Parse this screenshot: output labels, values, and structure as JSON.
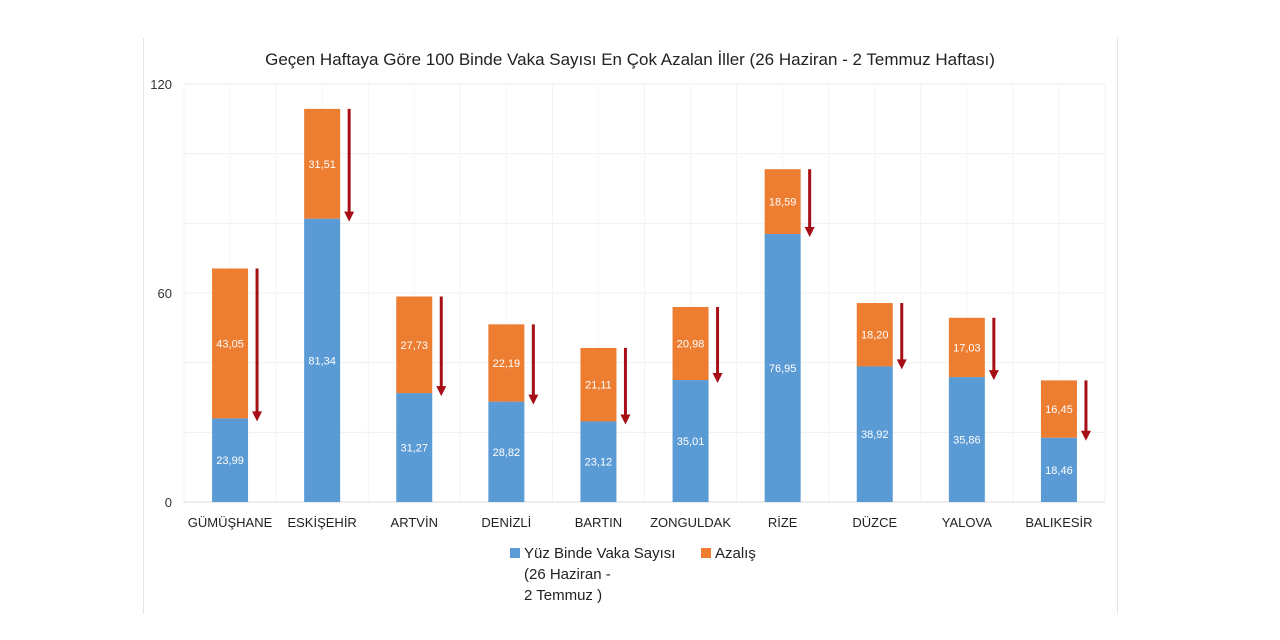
{
  "chart_data": {
    "type": "bar",
    "stacked": true,
    "title": "Geçen Haftaya Göre 100 Binde Vaka Sayısı En Çok Azalan İller (26 Haziran - 2 Temmuz Haftası)",
    "categories": [
      "GÜMÜŞHANE",
      "ESKİŞEHİR",
      "ARTVİN",
      "DENİZLİ",
      "BARTIN",
      "ZONGULDAK",
      "RİZE",
      "DÜZCE",
      "YALOVA",
      "BALIKESİR"
    ],
    "series": [
      {
        "name": "Yüz Binde Vaka Sayısı (26 Haziran - 2 Temmuz )",
        "color": "#5b9bd5",
        "values": [
          23.99,
          81.34,
          31.27,
          28.82,
          23.12,
          35.01,
          76.95,
          38.92,
          35.86,
          18.46
        ],
        "labels": [
          "23,99",
          "81,34",
          "31,27",
          "28,82",
          "23,12",
          "35,01",
          "76,95",
          "38,92",
          "35,86",
          "18,46"
        ]
      },
      {
        "name": "Azalış",
        "color": "#ed7d31",
        "values": [
          43.05,
          31.51,
          27.73,
          22.19,
          21.11,
          20.98,
          18.59,
          18.2,
          17.03,
          16.45
        ],
        "labels": [
          "43,05",
          "31,51",
          "27,73",
          "22,19",
          "21,11",
          "20,98",
          "18,59",
          "18,20",
          "17,03",
          "16,45"
        ]
      }
    ],
    "ylim": [
      0,
      120
    ],
    "yticks": [
      "0",
      "60",
      "120"
    ],
    "grid": true,
    "legend": "bottom",
    "annotation_arrow_color": "#a50f15",
    "legend_lines": [
      "Yüz Binde Vaka Sayısı",
      "(26 Haziran -",
      "2 Temmuz )"
    ]
  }
}
